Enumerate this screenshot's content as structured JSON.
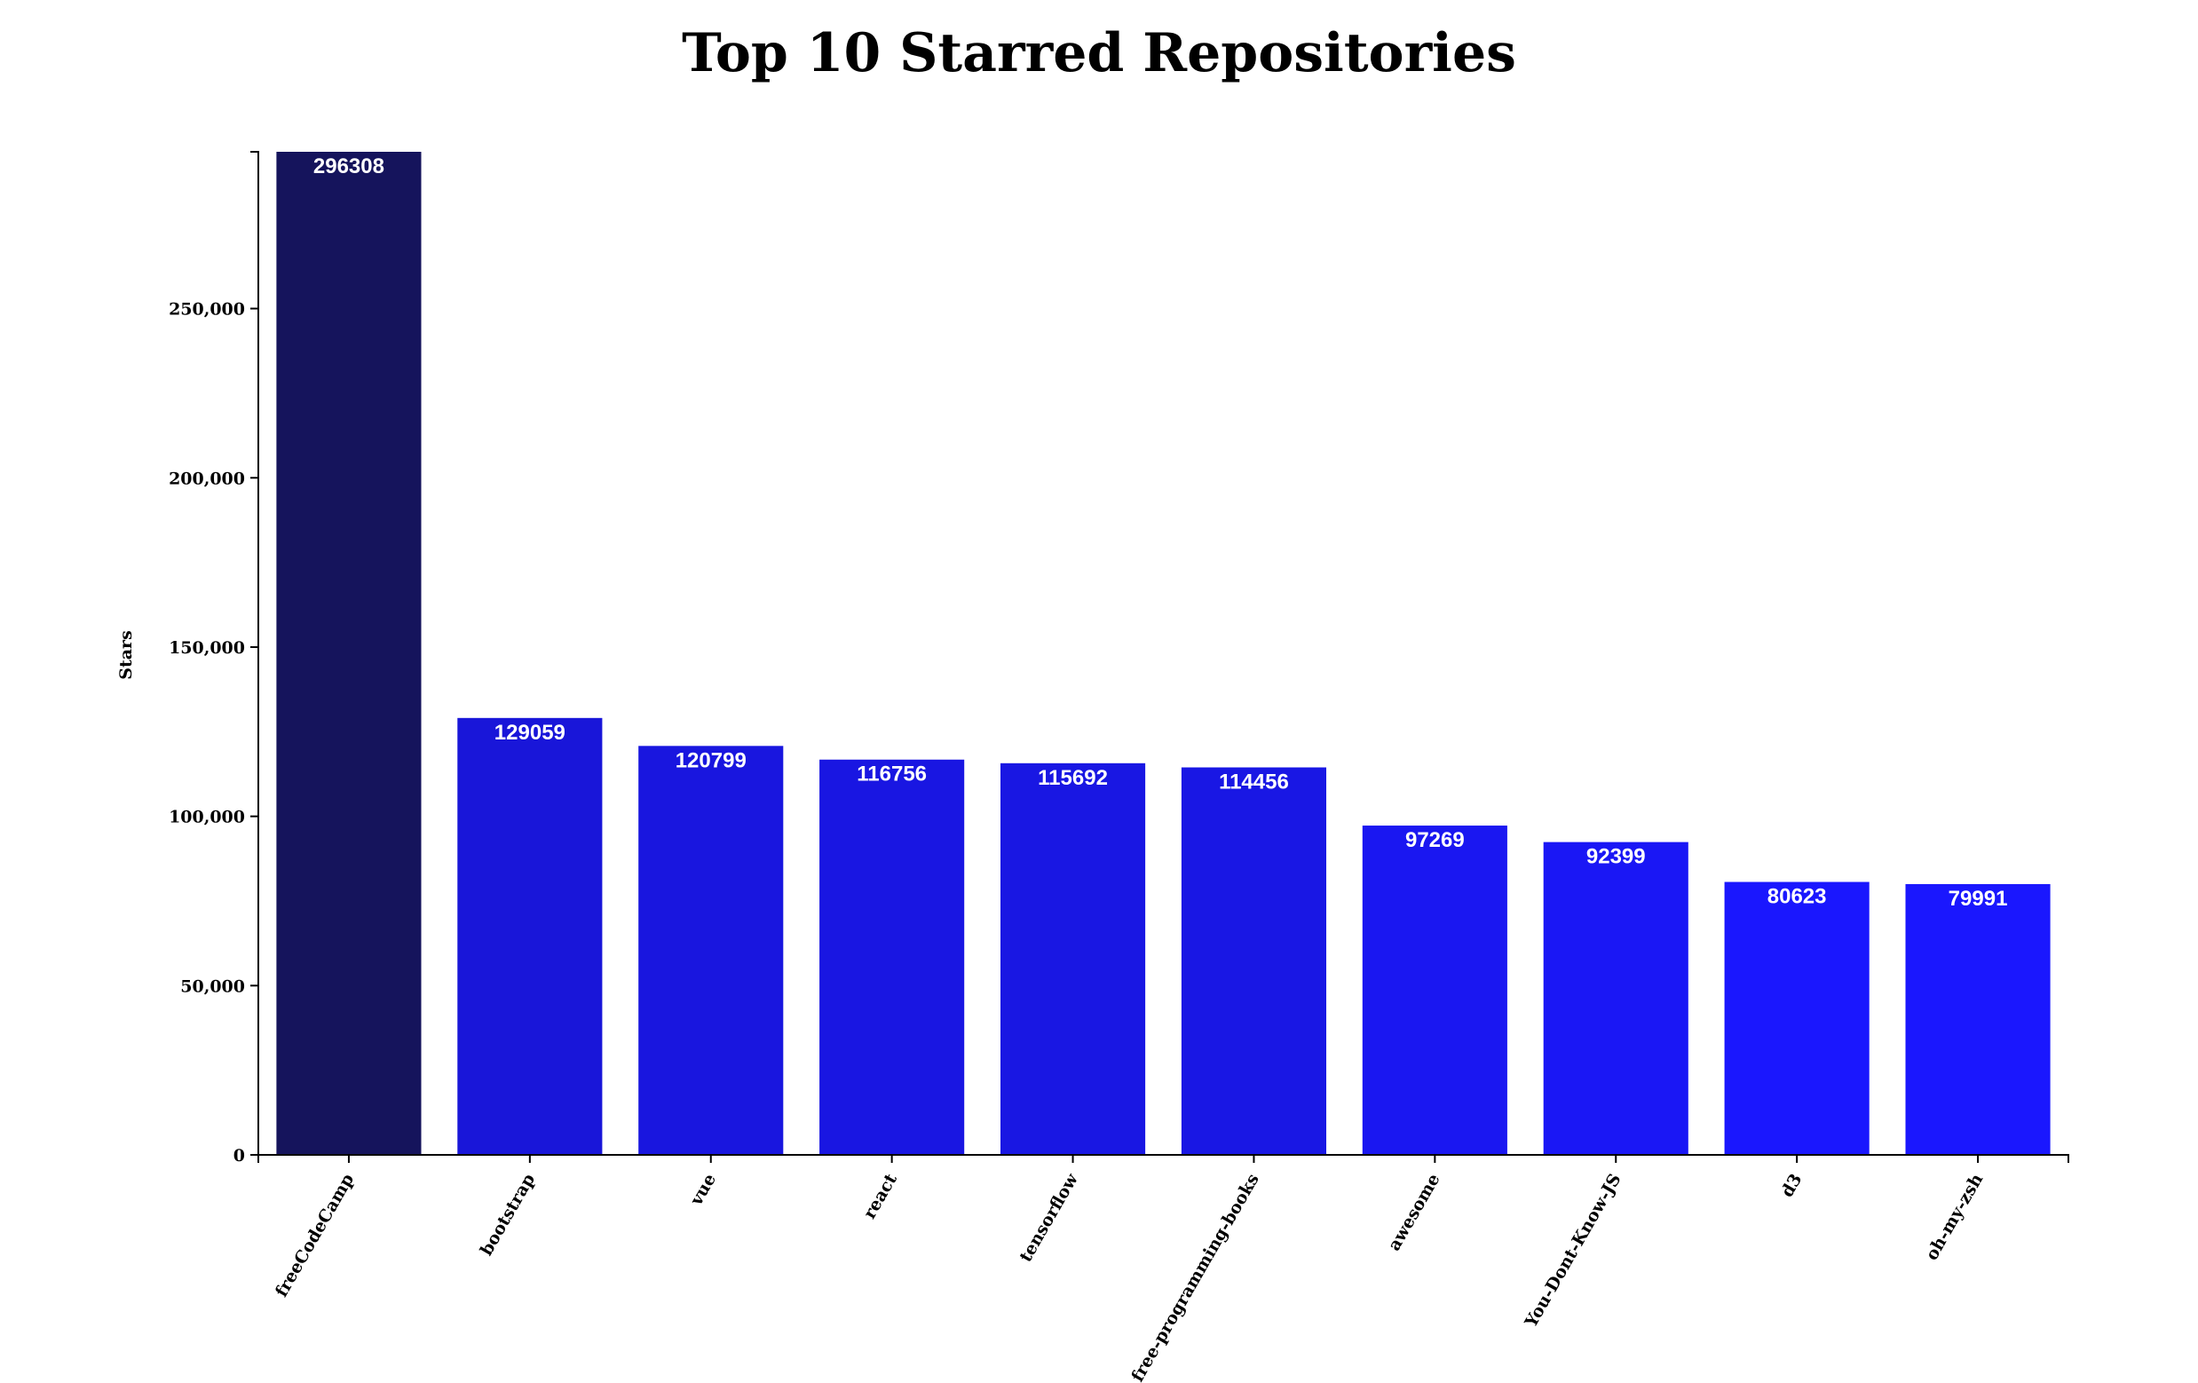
{
  "chart_data": {
    "type": "bar",
    "title": "Top 10 Starred Repositories",
    "xlabel": "",
    "ylabel": "Stars",
    "ylim": [
      0,
      296308
    ],
    "y_ticks": [
      0,
      50000,
      100000,
      150000,
      200000,
      250000
    ],
    "y_tick_labels": [
      "0",
      "50,000",
      "100,000",
      "150,000",
      "200,000",
      "250,000"
    ],
    "grid": false,
    "categories": [
      "freeCodeCamp",
      "bootstrap",
      "vue",
      "react",
      "tensorflow",
      "free-programming-books",
      "awesome",
      "You-Dont-Know-JS",
      "d3",
      "oh-my-zsh"
    ],
    "values": [
      296308,
      129059,
      120799,
      116756,
      115692,
      114456,
      97269,
      92399,
      80623,
      79991
    ],
    "data_labels": [
      "296308",
      "129059",
      "120799",
      "116756",
      "115692",
      "114456",
      "97269",
      "92399",
      "80623",
      "79991"
    ],
    "colors": {
      "dark": "#15145c",
      "light": "#1a17fe",
      "label": "#ffffff",
      "axis": "#000000"
    }
  }
}
